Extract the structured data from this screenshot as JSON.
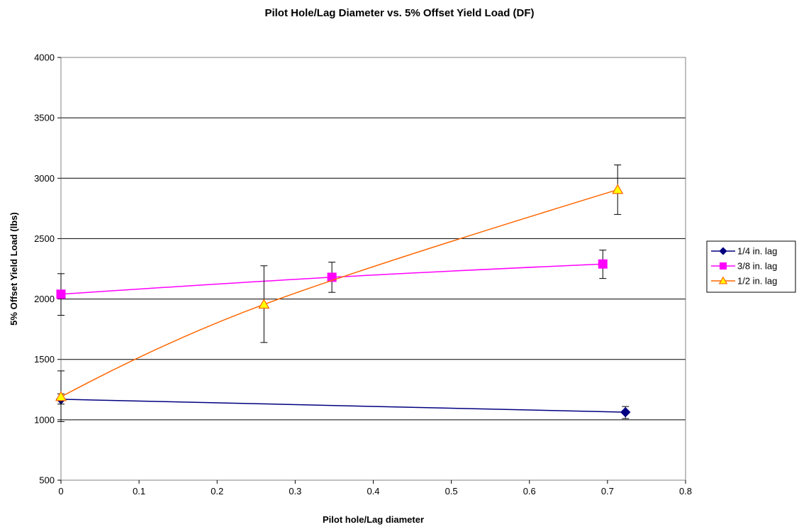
{
  "chart_data": {
    "type": "line",
    "title": "Pilot Hole/Lag Diameter vs. 5% Offset Yield Load (DF)",
    "xlabel": "Pilot hole/Lag diameter",
    "ylabel": "5% Offset Yield Load (lbs)",
    "xlim": [
      0,
      0.8
    ],
    "ylim": [
      500,
      4000
    ],
    "xticks": [
      "0",
      "0.1",
      "0.2",
      "0.3",
      "0.4",
      "0.5",
      "0.6",
      "0.7",
      "0.8"
    ],
    "yticks": [
      "500",
      "1000",
      "1500",
      "2000",
      "2500",
      "3000",
      "3500",
      "4000"
    ],
    "grid": "horizontal",
    "legend_position": "right",
    "series": [
      {
        "name": "1/4 in. lag",
        "marker": "diamond",
        "color": "#000080",
        "points": [
          {
            "x": 0,
            "y": 1170,
            "err_low": 1130,
            "err_high": 1215
          },
          {
            "x": 0.723,
            "y": 1063,
            "err_low": 1010,
            "err_high": 1110
          }
        ]
      },
      {
        "name": "3/8 in. lag",
        "marker": "square",
        "color": "#FF00FF",
        "points": [
          {
            "x": 0,
            "y": 2040,
            "err_low": 1865,
            "err_high": 2210
          },
          {
            "x": 0.347,
            "y": 2180,
            "err_low": 2055,
            "err_high": 2305
          },
          {
            "x": 0.694,
            "y": 2290,
            "err_low": 2170,
            "err_high": 2405
          }
        ]
      },
      {
        "name": "1/2 in. lag",
        "marker": "triangle",
        "color": "#FF6600",
        "points": [
          {
            "x": 0,
            "y": 1190,
            "err_low": 985,
            "err_high": 1405
          },
          {
            "x": 0.26,
            "y": 1955,
            "err_low": 1640,
            "err_high": 2275
          },
          {
            "x": 0.713,
            "y": 2905,
            "err_low": 2700,
            "err_high": 3110
          }
        ]
      }
    ]
  }
}
